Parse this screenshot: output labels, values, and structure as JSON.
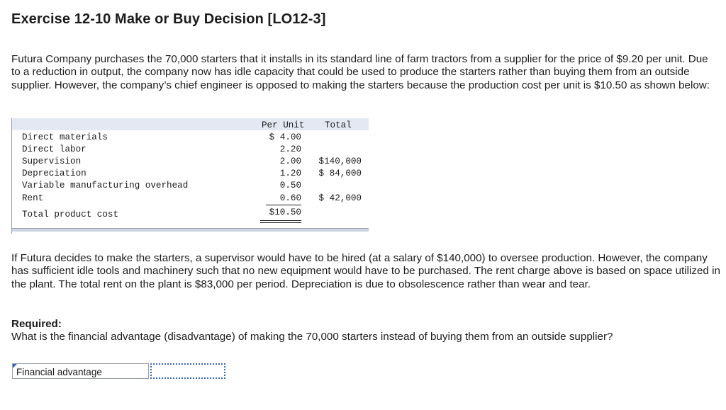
{
  "title": "Exercise 12-10 Make or Buy Decision [LO12-3]",
  "intro": "Futura Company purchases the 70,000 starters that it installs in its standard line of farm tractors from a supplier for the price of $9.20 per unit. Due to a reduction in output, the company now has idle capacity that could be used to produce the starters rather than buying them from an outside supplier. However, the company’s chief engineer is opposed to making the starters because the production cost per unit is $10.50 as shown below:",
  "cost_table": {
    "headers": {
      "per_unit": "Per Unit",
      "total": "Total"
    },
    "rows": [
      {
        "label": "Direct materials",
        "per_unit": "$ 4.00",
        "total": ""
      },
      {
        "label": "Direct labor",
        "per_unit": "2.20",
        "total": ""
      },
      {
        "label": "Supervision",
        "per_unit": "2.00",
        "total": "$140,000"
      },
      {
        "label": "Depreciation",
        "per_unit": "1.20",
        "total": "$ 84,000"
      },
      {
        "label": "Variable manufacturing overhead",
        "per_unit": "0.50",
        "total": ""
      },
      {
        "label": "Rent",
        "per_unit": "0.60",
        "total": "$ 42,000"
      },
      {
        "label": "Total product cost",
        "per_unit": "$10.50",
        "total": ""
      }
    ]
  },
  "after_text": "If Futura decides to make the starters, a supervisor would have to be hired (at a salary of $140,000) to oversee production. However, the company has sufficient idle tools and machinery such that no new equipment would have to be purchased. The rent charge above is based on space utilized in the plant. The total rent on the plant is $83,000 per period. Depreciation is due to obsolescence rather than wear and tear.",
  "required_label": "Required:",
  "question": "What is the financial advantage (disadvantage) of making the 70,000 starters instead of buying them from an outside supplier?",
  "answer": {
    "label": "Financial advantage",
    "value": ""
  },
  "colors": {
    "table_header_bg": "#e3e8f2",
    "input_border": "#3a66c8"
  }
}
